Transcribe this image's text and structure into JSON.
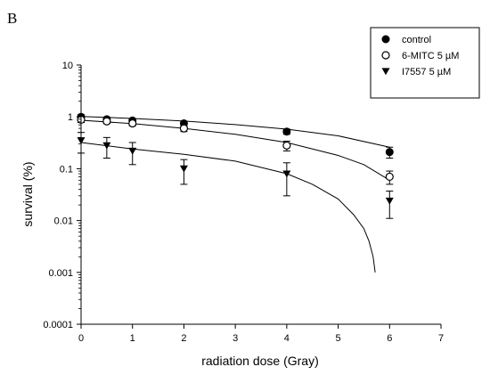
{
  "panel_label": "B",
  "chart_data": {
    "type": "scatter",
    "xlabel": "radiation dose (Gray)",
    "ylabel": "survival (%)",
    "xlim": [
      0,
      7
    ],
    "ylim": [
      0.0001,
      10
    ],
    "yscale": "log",
    "x_ticks": [
      "0",
      "1",
      "2",
      "3",
      "4",
      "5",
      "6",
      "7"
    ],
    "y_ticks": [
      "0.0001",
      "0.001",
      "0.01",
      "0.1",
      "1",
      "10"
    ],
    "grid": false,
    "legend_position": "top-right",
    "series": [
      {
        "name": "control",
        "marker": "filled-circle",
        "color": "#000000",
        "points": [
          {
            "x": 0,
            "y": 1.0,
            "err": 0.1
          },
          {
            "x": 0.5,
            "y": 0.9,
            "err": 0.08
          },
          {
            "x": 1,
            "y": 0.85,
            "err": 0.07
          },
          {
            "x": 2,
            "y": 0.75,
            "err": 0.07
          },
          {
            "x": 4,
            "y": 0.52,
            "err": 0.06
          },
          {
            "x": 6,
            "y": 0.21,
            "err": 0.05
          }
        ],
        "fit": [
          [
            0,
            1.02
          ],
          [
            1,
            0.93
          ],
          [
            2,
            0.83
          ],
          [
            3,
            0.71
          ],
          [
            4,
            0.58
          ],
          [
            5,
            0.43
          ],
          [
            6,
            0.26
          ]
        ]
      },
      {
        "name": "6-MITC 5 µM",
        "marker": "open-circle",
        "color": "#000000",
        "points": [
          {
            "x": 0,
            "y": 0.88,
            "err": 0.1
          },
          {
            "x": 0.5,
            "y": 0.82,
            "err": 0.08
          },
          {
            "x": 1,
            "y": 0.75,
            "err": 0.08
          },
          {
            "x": 2,
            "y": 0.6,
            "err": 0.08
          },
          {
            "x": 4,
            "y": 0.28,
            "err": 0.06
          },
          {
            "x": 6,
            "y": 0.07,
            "err": 0.02
          }
        ],
        "fit": [
          [
            0,
            0.86
          ],
          [
            1,
            0.74
          ],
          [
            2,
            0.6
          ],
          [
            3,
            0.46
          ],
          [
            4,
            0.32
          ],
          [
            5,
            0.18
          ],
          [
            5.5,
            0.12
          ],
          [
            6,
            0.06
          ]
        ]
      },
      {
        "name": "I7557 5 µM",
        "marker": "filled-triangle-down",
        "color": "#000000",
        "points": [
          {
            "x": 0,
            "y": 0.35,
            "err": 0.15
          },
          {
            "x": 0.5,
            "y": 0.28,
            "err": 0.12
          },
          {
            "x": 1,
            "y": 0.22,
            "err": 0.1
          },
          {
            "x": 2,
            "y": 0.1,
            "err": 0.05
          },
          {
            "x": 4,
            "y": 0.08,
            "err": 0.05
          },
          {
            "x": 6,
            "y": 0.024,
            "err": 0.013
          }
        ],
        "fit": [
          [
            0,
            0.32
          ],
          [
            1,
            0.24
          ],
          [
            2,
            0.19
          ],
          [
            3,
            0.14
          ],
          [
            4,
            0.08
          ],
          [
            4.5,
            0.05
          ],
          [
            5,
            0.026
          ],
          [
            5.3,
            0.013
          ],
          [
            5.5,
            0.007
          ],
          [
            5.6,
            0.004
          ],
          [
            5.68,
            0.002
          ],
          [
            5.72,
            0.001
          ]
        ]
      }
    ]
  }
}
